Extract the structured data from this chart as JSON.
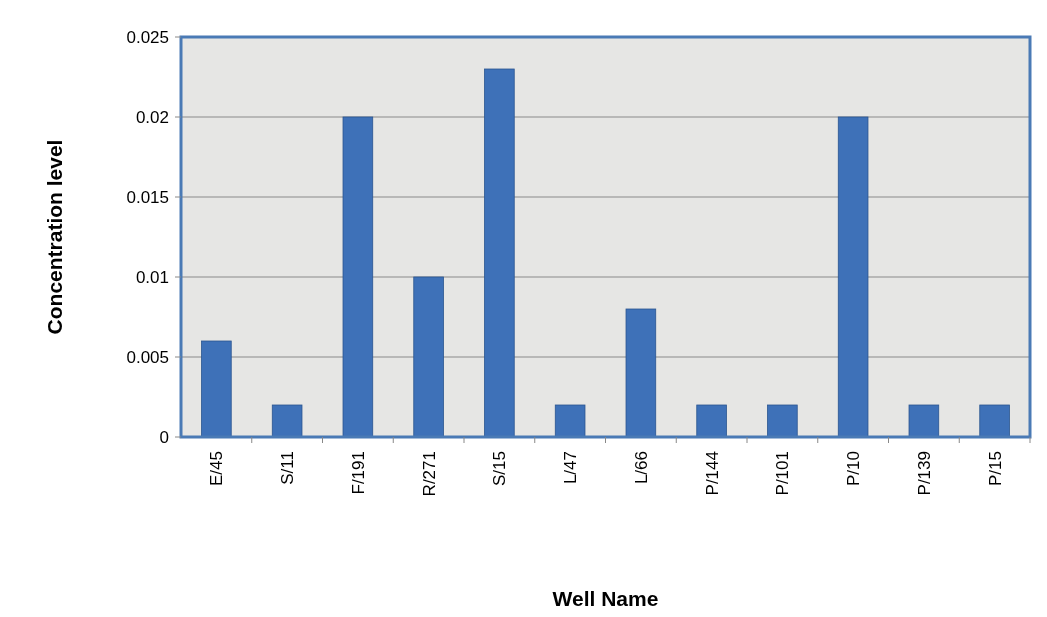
{
  "chart_data": {
    "type": "bar",
    "xlabel": "Well Name",
    "ylabel": "Concentration level",
    "categories": [
      "E/45",
      "S/11",
      "F/191",
      "R/271",
      "S/15",
      "L/47",
      "L/66",
      "P/144",
      "P/101",
      "P/10",
      "P/139",
      "P/15"
    ],
    "values": [
      0.006,
      0.002,
      0.02,
      0.01,
      0.023,
      0.002,
      0.008,
      0.002,
      0.002,
      0.02,
      0.002,
      0.002
    ],
    "color": "#3e71b8",
    "ylim": [
      0,
      0.025
    ],
    "yticks": [
      0,
      0.005,
      0.01,
      0.015,
      0.02,
      0.025
    ],
    "grid": "y"
  }
}
